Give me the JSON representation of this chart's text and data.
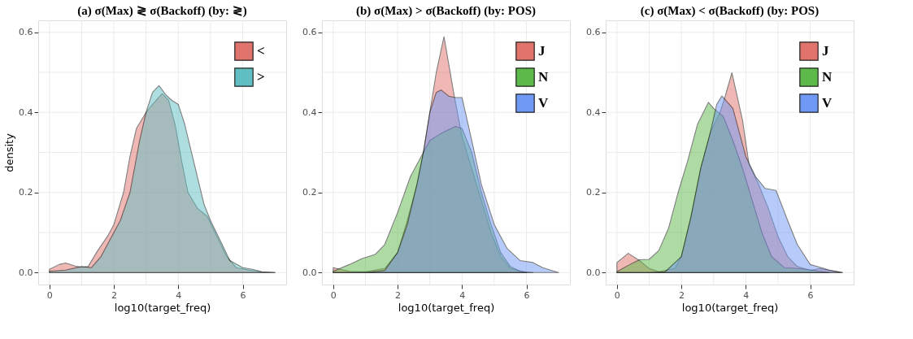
{
  "chart_data": [
    {
      "type": "area",
      "title": "(a)      σ(Max) ≷ σ(Backoff) (by: ≷)",
      "xlabel": "log10(target_freq)",
      "ylabel": "density",
      "xlim": [
        -0.35,
        7.35
      ],
      "ylim": [
        -0.03,
        0.63
      ],
      "xticks": [
        0,
        {
          "value": 1,
          "label": null
        },
        2,
        {
          "value": 3,
          "label": null
        },
        4,
        {
          "value": 5,
          "label": null
        },
        6
      ],
      "yticks": [
        {
          "value": 0,
          "label": "0.0"
        },
        {
          "value": 0.1,
          "label": null
        },
        0.2,
        {
          "value": 0.3,
          "label": null
        },
        0.4,
        {
          "value": 0.5,
          "label": null
        },
        0.6
      ],
      "grid": true,
      "legend": "top right",
      "series": [
        {
          "name": "<",
          "color": "#e0736b",
          "x": [
            0,
            0.3,
            0.5,
            0.8,
            1.0,
            1.2,
            1.5,
            1.8,
            2.0,
            2.3,
            2.5,
            2.7,
            3.0,
            3.2,
            3.5,
            3.7,
            3.9,
            4.1,
            4.3,
            4.6,
            4.9,
            5.2,
            5.5,
            5.8,
            6.2,
            6.6,
            7.0
          ],
          "values": [
            0.008,
            0.02,
            0.024,
            0.016,
            0.013,
            0.015,
            0.055,
            0.09,
            0.12,
            0.2,
            0.29,
            0.36,
            0.4,
            0.42,
            0.447,
            0.43,
            0.37,
            0.28,
            0.2,
            0.16,
            0.14,
            0.09,
            0.04,
            0.012,
            0.006,
            0.001,
            0
          ]
        },
        {
          "name": ">",
          "color": "#5fbfc3",
          "x": [
            0,
            0.5,
            1.0,
            1.3,
            1.6,
            2.0,
            2.2,
            2.5,
            2.8,
            3.0,
            3.2,
            3.4,
            3.6,
            3.8,
            4.0,
            4.2,
            4.5,
            4.8,
            5.0,
            5.3,
            5.6,
            6.0,
            6.3,
            6.6,
            7.0
          ],
          "values": [
            0.003,
            0.006,
            0.015,
            0.012,
            0.04,
            0.1,
            0.13,
            0.2,
            0.33,
            0.4,
            0.45,
            0.467,
            0.445,
            0.43,
            0.42,
            0.37,
            0.27,
            0.17,
            0.13,
            0.08,
            0.03,
            0.012,
            0.008,
            0.002,
            0
          ]
        }
      ]
    },
    {
      "type": "area",
      "title": "(b)      σ(Max) > σ(Backoff) (by: POS)",
      "xlabel": "log10(target_freq)",
      "xlim": [
        -0.35,
        7.35
      ],
      "ylim": [
        -0.03,
        0.63
      ],
      "xticks": [
        0,
        {
          "value": 1,
          "label": null
        },
        2,
        {
          "value": 3,
          "label": null
        },
        4,
        {
          "value": 5,
          "label": null
        },
        6
      ],
      "yticks": [
        {
          "value": 0,
          "label": "0.0"
        },
        {
          "value": 0.1,
          "label": null
        },
        0.2,
        {
          "value": 0.3,
          "label": null
        },
        0.4,
        {
          "value": 0.5,
          "label": null
        },
        0.6
      ],
      "grid": true,
      "legend": "top right",
      "series": [
        {
          "name": "J",
          "color": "#e0736b",
          "x": [
            0,
            0.5,
            1.0,
            1.6,
            2.0,
            2.3,
            2.6,
            2.8,
            3.0,
            3.2,
            3.44,
            3.76,
            4.0,
            4.3,
            4.6,
            4.9,
            5.2,
            5.5,
            6.0
          ],
          "values": [
            0.012,
            0.003,
            0.002,
            0.01,
            0.05,
            0.13,
            0.22,
            0.3,
            0.4,
            0.5,
            0.589,
            0.44,
            0.34,
            0.26,
            0.18,
            0.1,
            0.04,
            0.01,
            0
          ]
        },
        {
          "name": "N",
          "color": "#5db94a",
          "x": [
            0,
            0.5,
            0.9,
            1.3,
            1.6,
            2.0,
            2.4,
            2.8,
            3.0,
            3.4,
            3.8,
            4.0,
            4.3,
            4.6,
            4.9,
            5.2,
            5.5,
            5.8,
            6.2
          ],
          "values": [
            0.003,
            0.02,
            0.035,
            0.045,
            0.07,
            0.15,
            0.24,
            0.3,
            0.33,
            0.35,
            0.365,
            0.36,
            0.3,
            0.2,
            0.12,
            0.05,
            0.015,
            0.003,
            0
          ]
        },
        {
          "name": "V",
          "color": "#6f99f5",
          "x": [
            0,
            1.0,
            1.6,
            2.0,
            2.3,
            2.6,
            2.8,
            3.0,
            3.2,
            3.35,
            3.6,
            3.8,
            4.0,
            4.3,
            4.6,
            5.0,
            5.4,
            5.8,
            6.2,
            6.5,
            7.0
          ],
          "values": [
            0,
            0,
            0.005,
            0.05,
            0.12,
            0.22,
            0.3,
            0.4,
            0.45,
            0.456,
            0.44,
            0.437,
            0.437,
            0.33,
            0.22,
            0.12,
            0.06,
            0.03,
            0.025,
            0.012,
            0
          ]
        }
      ]
    },
    {
      "type": "area",
      "title": "(c)      σ(Max) < σ(Backoff) (by: POS)",
      "xlabel": "log10(target_freq)",
      "xlim": [
        -0.35,
        7.35
      ],
      "ylim": [
        -0.03,
        0.63
      ],
      "xticks": [
        0,
        {
          "value": 1,
          "label": null
        },
        2,
        {
          "value": 3,
          "label": null
        },
        4,
        {
          "value": 5,
          "label": null
        },
        6
      ],
      "yticks": [
        {
          "value": 0,
          "label": "0.0"
        },
        {
          "value": 0.1,
          "label": null
        },
        0.2,
        {
          "value": 0.3,
          "label": null
        },
        0.4,
        {
          "value": 0.5,
          "label": null
        },
        0.6
      ],
      "grid": true,
      "legend": "top right",
      "series": [
        {
          "name": "J",
          "color": "#e0736b",
          "x": [
            0,
            0.35,
            0.7,
            1.0,
            1.3,
            1.8,
            2.0,
            2.3,
            2.6,
            2.9,
            3.2,
            3.36,
            3.57,
            3.9,
            4.1,
            4.4,
            4.7,
            5.0,
            5.3,
            5.6,
            6.0,
            6.3,
            6.6,
            7.0
          ],
          "values": [
            0.025,
            0.048,
            0.03,
            0.01,
            0.002,
            0.01,
            0.04,
            0.14,
            0.26,
            0.35,
            0.4,
            0.44,
            0.499,
            0.38,
            0.27,
            0.22,
            0.16,
            0.09,
            0.04,
            0.015,
            0.005,
            0.01,
            0.005,
            0
          ]
        },
        {
          "name": "N",
          "color": "#5db94a",
          "x": [
            0,
            0.4,
            0.7,
            1.0,
            1.3,
            1.6,
            1.9,
            2.2,
            2.5,
            2.84,
            3.0,
            3.3,
            3.6,
            3.9,
            4.2,
            4.5,
            4.8,
            5.2,
            5.6,
            5.9,
            6.3,
            6.6
          ],
          "values": [
            0.002,
            0.02,
            0.032,
            0.033,
            0.055,
            0.11,
            0.2,
            0.28,
            0.37,
            0.425,
            0.41,
            0.39,
            0.33,
            0.26,
            0.18,
            0.1,
            0.04,
            0.012,
            0.01,
            0.008,
            0.003,
            0
          ]
        },
        {
          "name": "V",
          "color": "#6f99f5",
          "x": [
            0,
            1.0,
            1.5,
            2.0,
            2.3,
            2.6,
            2.9,
            3.1,
            3.26,
            3.6,
            4.0,
            4.3,
            4.6,
            4.94,
            5.3,
            5.6,
            6.0,
            6.3,
            6.6,
            7.0
          ],
          "values": [
            0,
            0,
            0.002,
            0.04,
            0.14,
            0.26,
            0.35,
            0.42,
            0.441,
            0.41,
            0.29,
            0.24,
            0.21,
            0.205,
            0.13,
            0.07,
            0.02,
            0.013,
            0.006,
            0
          ]
        }
      ]
    }
  ]
}
